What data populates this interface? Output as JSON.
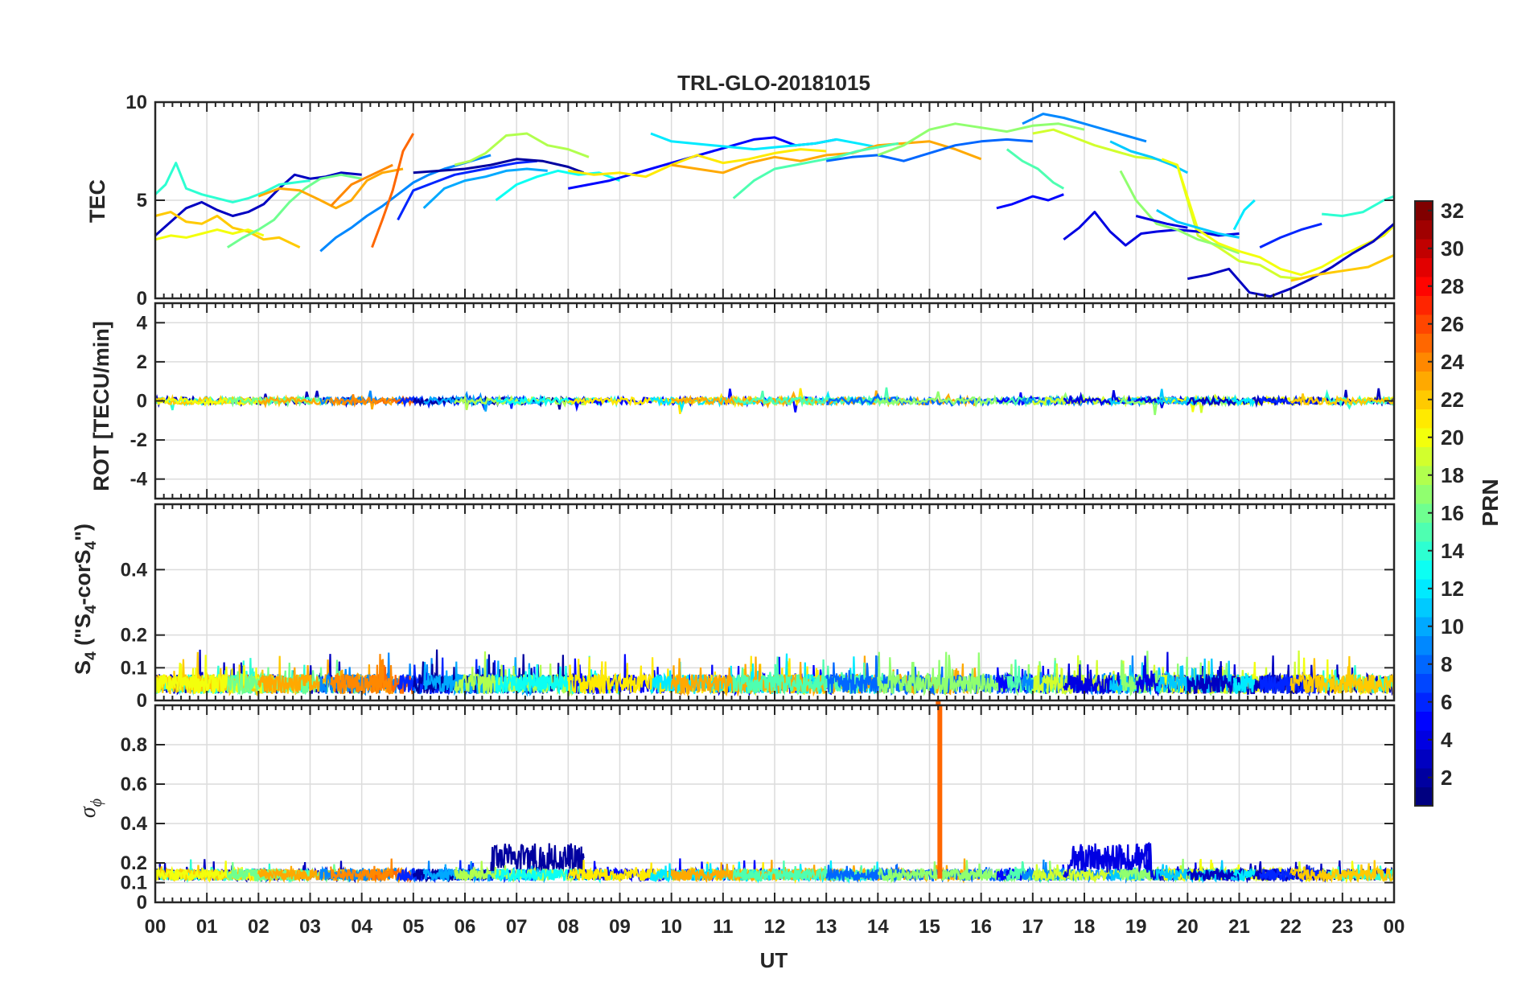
{
  "chart_data": {
    "type": "line",
    "title": "TRL-GLO-20181015",
    "xlabel": "UT",
    "x_ticks": [
      "00",
      "01",
      "02",
      "03",
      "04",
      "05",
      "06",
      "07",
      "08",
      "09",
      "10",
      "11",
      "12",
      "13",
      "14",
      "15",
      "16",
      "17",
      "18",
      "19",
      "20",
      "21",
      "22",
      "23",
      "00"
    ],
    "xlim": [
      0,
      24
    ],
    "panels": [
      {
        "id": "tec",
        "ylabel": "TEC",
        "ylim": [
          0,
          10
        ],
        "ticks": [
          0,
          5,
          10
        ],
        "tick_labels": [
          "0",
          "5",
          "10"
        ]
      },
      {
        "id": "rot",
        "ylabel": "ROT [TECU/min]",
        "ylim": [
          -5,
          5
        ],
        "ticks": [
          -4,
          -2,
          0,
          2,
          4
        ],
        "tick_labels": [
          "-4",
          "-2",
          "0",
          "2",
          "4"
        ]
      },
      {
        "id": "s4",
        "ylabel_main": "S",
        "ylabel_sub": "4",
        "ylabel_rest": " (\"S",
        "ylabel_sub2": "4",
        "ylabel_rest2": "-corS",
        "ylabel_sub3": "4",
        "ylabel_end": "\")",
        "ylim": [
          0,
          0.6
        ],
        "ticks": [
          0,
          0.1,
          0.2,
          0.4
        ],
        "tick_labels": [
          "0",
          "0.1",
          "0.2",
          "0.4"
        ]
      },
      {
        "id": "sigma",
        "ylabel_main": "σ",
        "ylabel_sub": "ϕ",
        "ylim": [
          0,
          1
        ],
        "ticks": [
          0,
          0.1,
          0.2,
          0.4,
          0.6,
          0.8
        ],
        "tick_labels": [
          "0",
          "0.1",
          "0.2",
          "0.4",
          "0.6",
          "0.8"
        ]
      }
    ],
    "colorbar": {
      "label": "PRN",
      "range": [
        1,
        32
      ],
      "tick_labels": [
        "2",
        "4",
        "6",
        "8",
        "10",
        "12",
        "14",
        "16",
        "18",
        "20",
        "22",
        "24",
        "26",
        "28",
        "30",
        "32"
      ],
      "colormap": "jet"
    },
    "tec_series": [
      {
        "prn": 3,
        "x": [
          0,
          0.3,
          0.6,
          0.9,
          1.2,
          1.5,
          1.8,
          2.1,
          2.4,
          2.7,
          3.0,
          3.3,
          3.6,
          4.0
        ],
        "y": [
          3.2,
          3.9,
          4.6,
          4.9,
          4.5,
          4.2,
          4.4,
          4.8,
          5.6,
          6.3,
          6.1,
          6.2,
          6.4,
          6.3
        ]
      },
      {
        "prn": 14,
        "x": [
          0,
          0.2,
          0.4,
          0.6,
          0.9,
          1.2,
          1.5,
          1.8,
          2.1,
          2.4,
          2.7,
          3.0
        ],
        "y": [
          5.3,
          5.8,
          6.9,
          5.6,
          5.3,
          5.1,
          4.9,
          5.1,
          5.4,
          5.8,
          5.9,
          6.0
        ]
      },
      {
        "prn": 22,
        "x": [
          0,
          0.3,
          0.6,
          0.9,
          1.2,
          1.5,
          1.8,
          2.1,
          2.4,
          2.8
        ],
        "y": [
          4.2,
          4.4,
          3.9,
          3.8,
          4.2,
          3.6,
          3.4,
          3.0,
          3.1,
          2.6
        ]
      },
      {
        "prn": 20,
        "x": [
          0,
          0.3,
          0.6,
          0.9,
          1.2,
          1.5,
          1.8,
          2.1
        ],
        "y": [
          3.0,
          3.2,
          3.1,
          3.3,
          3.5,
          3.3,
          3.5,
          3.2
        ]
      },
      {
        "prn": 16,
        "x": [
          1.4,
          1.7,
          2.0,
          2.3,
          2.6,
          2.9,
          3.2,
          3.6,
          4.0
        ],
        "y": [
          2.6,
          3.1,
          3.5,
          4.0,
          4.9,
          5.6,
          6.1,
          6.3,
          6.1
        ]
      },
      {
        "prn": 23,
        "x": [
          2.0,
          2.4,
          2.8,
          3.2,
          3.5,
          3.8,
          4.1,
          4.4,
          4.8
        ],
        "y": [
          5.2,
          5.6,
          5.5,
          5.0,
          4.6,
          5.0,
          6.0,
          6.4,
          6.6
        ]
      },
      {
        "prn": 9,
        "x": [
          3.2,
          3.5,
          3.8,
          4.1,
          4.4,
          4.7,
          5.0,
          5.3,
          5.6,
          6.0,
          6.5
        ],
        "y": [
          2.4,
          3.1,
          3.6,
          4.2,
          4.7,
          5.3,
          5.9,
          6.3,
          6.6,
          6.9,
          7.3
        ]
      },
      {
        "prn": 25,
        "x": [
          4.2,
          4.4,
          4.6,
          4.8,
          5.0
        ],
        "y": [
          2.6,
          4.0,
          5.5,
          7.5,
          8.4
        ]
      },
      {
        "prn": 24,
        "x": [
          3.4,
          3.8,
          4.2,
          4.6
        ],
        "y": [
          4.7,
          5.8,
          6.3,
          6.8
        ]
      },
      {
        "prn": 6,
        "x": [
          4.7,
          5.0,
          5.4,
          5.8,
          6.2,
          6.6,
          7.0,
          7.4
        ],
        "y": [
          4.0,
          5.5,
          5.9,
          6.3,
          6.5,
          6.7,
          6.9,
          7.0
        ]
      },
      {
        "prn": 2,
        "x": [
          5.0,
          5.5,
          6.0,
          6.5,
          7.0,
          7.5,
          8.0,
          8.3
        ],
        "y": [
          6.4,
          6.5,
          6.6,
          6.8,
          7.1,
          7.0,
          6.7,
          6.4
        ]
      },
      {
        "prn": 10,
        "x": [
          5.2,
          5.6,
          6.0,
          6.4,
          6.8,
          7.2,
          7.6
        ],
        "y": [
          4.6,
          5.6,
          6.0,
          6.2,
          6.5,
          6.6,
          6.5
        ]
      },
      {
        "prn": 18,
        "x": [
          5.8,
          6.1,
          6.4,
          6.8,
          7.2,
          7.6,
          8.0,
          8.4
        ],
        "y": [
          6.8,
          7.0,
          7.4,
          8.3,
          8.4,
          7.8,
          7.6,
          7.2
        ]
      },
      {
        "prn": 13,
        "x": [
          6.6,
          7.0,
          7.4,
          7.8,
          8.2,
          8.6,
          9.0
        ],
        "y": [
          5.0,
          5.8,
          6.2,
          6.5,
          6.3,
          6.4,
          6.0
        ]
      },
      {
        "prn": 5,
        "x": [
          8.0,
          8.4,
          8.8,
          9.2,
          9.6,
          10.0,
          10.4,
          10.8,
          11.2,
          11.6,
          12.0,
          12.4,
          12.8,
          13.2
        ],
        "y": [
          5.6,
          5.8,
          6.0,
          6.3,
          6.6,
          6.9,
          7.2,
          7.5,
          7.8,
          8.1,
          8.2,
          7.8,
          7.9,
          8.1
        ]
      },
      {
        "prn": 21,
        "x": [
          8.0,
          8.5,
          9.0,
          9.5,
          10.0,
          10.5,
          11.0,
          11.5,
          12.0,
          12.5,
          13.0
        ],
        "y": [
          6.5,
          6.3,
          6.4,
          6.2,
          6.8,
          7.3,
          6.9,
          7.1,
          7.4,
          7.6,
          7.5
        ]
      },
      {
        "prn": 12,
        "x": [
          9.6,
          10.0,
          10.4,
          10.8,
          11.2,
          11.6,
          12.0,
          12.4,
          12.8,
          13.2,
          13.6,
          14.0
        ],
        "y": [
          8.4,
          8.0,
          7.9,
          7.8,
          7.7,
          7.6,
          7.7,
          7.8,
          7.9,
          8.1,
          7.9,
          7.7
        ]
      },
      {
        "prn": 23,
        "x": [
          10.0,
          10.5,
          11.0,
          11.5,
          12.0,
          12.5,
          13.0,
          13.5,
          14.0,
          14.5,
          15.0,
          15.5,
          16.0
        ],
        "y": [
          6.8,
          6.6,
          6.4,
          6.9,
          7.2,
          7.0,
          7.3,
          7.4,
          7.8,
          7.9,
          8.0,
          7.6,
          7.1
        ]
      },
      {
        "prn": 15,
        "x": [
          11.2,
          11.6,
          12.0,
          12.4,
          12.8,
          13.2,
          13.6,
          14.0,
          14.4
        ],
        "y": [
          5.1,
          6.0,
          6.6,
          6.8,
          7.0,
          7.2,
          7.5,
          7.7,
          7.9
        ]
      },
      {
        "prn": 8,
        "x": [
          13.0,
          13.5,
          14.0,
          14.5,
          15.0,
          15.5,
          16.0,
          16.5,
          17.0
        ],
        "y": [
          7.0,
          7.2,
          7.3,
          7.0,
          7.4,
          7.8,
          8.0,
          8.1,
          8.0
        ]
      },
      {
        "prn": 17,
        "x": [
          14.0,
          14.5,
          15.0,
          15.5,
          16.0,
          16.5,
          17.0,
          17.5,
          18.0
        ],
        "y": [
          7.3,
          7.8,
          8.6,
          8.9,
          8.7,
          8.5,
          8.8,
          8.9,
          8.6
        ]
      },
      {
        "prn": 5,
        "x": [
          16.3,
          16.6,
          17.0,
          17.3,
          17.6
        ],
        "y": [
          4.6,
          4.8,
          5.2,
          5.0,
          5.3
        ]
      },
      {
        "prn": 15,
        "x": [
          16.5,
          16.8,
          17.1,
          17.4,
          17.6
        ],
        "y": [
          7.6,
          7.0,
          6.6,
          5.9,
          5.6
        ]
      },
      {
        "prn": 9,
        "x": [
          16.8,
          17.2,
          17.6,
          18.0,
          18.4,
          18.8,
          19.2
        ],
        "y": [
          8.9,
          9.4,
          9.2,
          8.9,
          8.6,
          8.3,
          8.0
        ]
      },
      {
        "prn": 19,
        "x": [
          17.0,
          17.4,
          17.8,
          18.2,
          18.6,
          19.0,
          19.4,
          19.8,
          20.2,
          20.6,
          21.0,
          21.4,
          21.8,
          22.2
        ],
        "y": [
          8.4,
          8.6,
          8.2,
          7.8,
          7.5,
          7.2,
          7.1,
          6.8,
          3.2,
          2.6,
          1.9,
          1.7,
          1.1,
          1.0
        ]
      },
      {
        "prn": 4,
        "x": [
          17.6,
          17.9,
          18.2,
          18.5,
          18.8,
          19.1,
          19.4,
          19.8,
          20.2,
          20.6,
          21.0
        ],
        "y": [
          3.0,
          3.6,
          4.4,
          3.4,
          2.7,
          3.3,
          3.4,
          3.5,
          3.4,
          3.2,
          3.3
        ]
      },
      {
        "prn": 11,
        "x": [
          18.5,
          18.9,
          19.3,
          19.7,
          20.0
        ],
        "y": [
          8.0,
          7.5,
          7.2,
          6.8,
          6.4
        ]
      },
      {
        "prn": 17,
        "x": [
          18.7,
          19.0,
          19.4,
          19.8,
          20.2,
          20.6,
          21.0
        ],
        "y": [
          6.5,
          5.0,
          3.8,
          3.5,
          3.0,
          2.7,
          2.3
        ]
      },
      {
        "prn": 4,
        "x": [
          19.0,
          19.3,
          19.6,
          20.0
        ],
        "y": [
          4.2,
          4.0,
          3.8,
          3.6
        ]
      },
      {
        "prn": 20,
        "x": [
          19.5,
          19.8,
          20.2,
          20.6,
          21.0,
          21.4,
          21.8,
          22.2,
          22.6,
          23.0,
          23.4,
          23.8,
          24.0
        ],
        "y": [
          7.1,
          6.8,
          3.5,
          2.8,
          2.4,
          2.1,
          1.5,
          1.2,
          1.6,
          2.2,
          2.7,
          3.2,
          3.7
        ]
      },
      {
        "prn": 11,
        "x": [
          19.4,
          19.8,
          20.2,
          20.6,
          21.0
        ],
        "y": [
          4.5,
          3.9,
          3.6,
          3.3,
          3.1
        ]
      },
      {
        "prn": 3,
        "x": [
          20.0,
          20.4,
          20.8,
          21.2,
          21.6,
          22.0,
          22.4,
          22.8,
          23.2,
          23.6,
          24.0
        ],
        "y": [
          1.0,
          1.2,
          1.5,
          0.3,
          0.1,
          0.5,
          1.0,
          1.6,
          2.3,
          2.9,
          3.8
        ]
      },
      {
        "prn": 12,
        "x": [
          20.9,
          21.1,
          21.3
        ],
        "y": [
          3.5,
          4.5,
          5.0
        ]
      },
      {
        "prn": 6,
        "x": [
          21.4,
          21.8,
          22.2,
          22.6
        ],
        "y": [
          2.6,
          3.1,
          3.5,
          3.8
        ]
      },
      {
        "prn": 14,
        "x": [
          22.6,
          23.0,
          23.4,
          23.8,
          24.0
        ],
        "y": [
          4.3,
          4.2,
          4.4,
          5.0,
          5.2
        ]
      },
      {
        "prn": 22,
        "x": [
          22.0,
          22.5,
          23.0,
          23.5,
          24.0
        ],
        "y": [
          0.9,
          1.2,
          1.4,
          1.6,
          2.2
        ]
      }
    ],
    "sigma_spike": {
      "prn": 25,
      "x": 15.2,
      "y_max": 1.0
    }
  }
}
